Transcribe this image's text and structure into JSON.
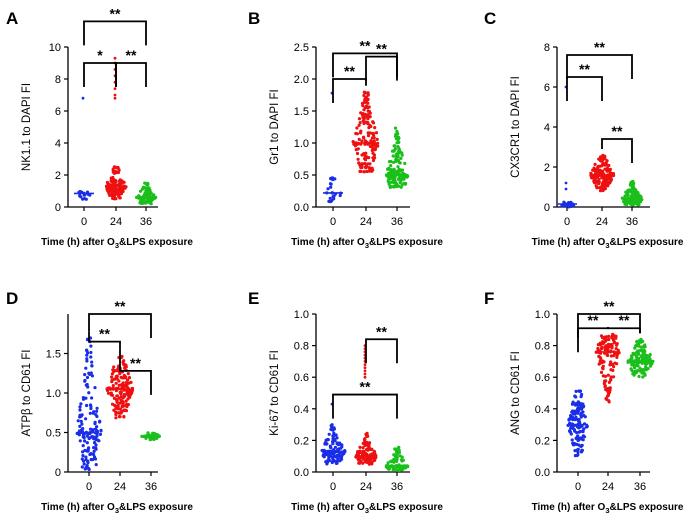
{
  "colors": {
    "t0": "#1a2ee8",
    "t24": "#ee1111",
    "t36": "#1bbf1b",
    "axis": "#000000"
  },
  "chart_data": [
    {
      "panel": "A",
      "type": "scatter",
      "ylabel": "NK1.1 to DAPI FI",
      "xlabel_parts": [
        "Time (h) after O",
        "3",
        "&LPS exposure"
      ],
      "categories": [
        "0",
        "24",
        "36"
      ],
      "ylim": [
        0,
        10
      ],
      "yticks": [
        "0",
        "2",
        "4",
        "6",
        "8",
        "10"
      ],
      "series": [
        {
          "name": "0",
          "color": "#1a2ee8",
          "count": 18,
          "median": 0.85,
          "min": 0.45,
          "max": 1.2,
          "spread": 0.28,
          "outliers": [
            6.8
          ]
        },
        {
          "name": "24",
          "color": "#ee1111",
          "count": 130,
          "median": 1.3,
          "min": 0.5,
          "max": 2.6,
          "spread": 0.36,
          "outliers": [
            9.3,
            9.0,
            8.6,
            8.2,
            7.8,
            7.4,
            7.0,
            6.8
          ]
        },
        {
          "name": "36",
          "color": "#1bbf1b",
          "count": 110,
          "median": 0.6,
          "min": 0.2,
          "max": 1.5,
          "spread": 0.34,
          "outliers": []
        }
      ],
      "sig": [
        {
          "from": 0,
          "to": 1,
          "label": "*",
          "level": 9.0
        },
        {
          "from": 1,
          "to": 2,
          "label": "**",
          "level": 9.0
        },
        {
          "from": 0,
          "to": 2,
          "label": "**",
          "level": 11.6
        }
      ]
    },
    {
      "panel": "B",
      "type": "scatter",
      "ylabel": "Gr1 to DAPI FI",
      "xlabel_parts": [
        "Time (h) after O",
        "3",
        "&LPS exposure"
      ],
      "categories": [
        "0",
        "24",
        "36"
      ],
      "ylim": [
        0,
        2.5
      ],
      "yticks": [
        "0.0",
        "0.5",
        "1.0",
        "1.5",
        "2.0",
        "2.5"
      ],
      "series": [
        {
          "name": "0",
          "color": "#1a2ee8",
          "count": 22,
          "median": 0.22,
          "min": 0.05,
          "max": 0.5,
          "spread": 0.3,
          "outliers": [
            1.78
          ]
        },
        {
          "name": "24",
          "color": "#ee1111",
          "count": 160,
          "median": 1.0,
          "min": 0.55,
          "max": 1.8,
          "spread": 0.46,
          "outliers": []
        },
        {
          "name": "36",
          "color": "#1bbf1b",
          "count": 160,
          "median": 0.5,
          "min": 0.3,
          "max": 1.25,
          "spread": 0.38,
          "outliers": []
        }
      ],
      "sig": [
        {
          "from": 0,
          "to": 1,
          "label": "**",
          "level": 2.0
        },
        {
          "from": 1,
          "to": 2,
          "label": "**",
          "level": 2.35
        },
        {
          "from": 0,
          "to": 2,
          "label": "**",
          "level": 2.4
        }
      ]
    },
    {
      "panel": "C",
      "type": "scatter",
      "ylabel": "CX3CR1 to DAPI FI",
      "xlabel_parts": [
        "Time (h) after O",
        "3",
        "&LPS exposure"
      ],
      "categories": [
        "0",
        "24",
        "36"
      ],
      "ylim": [
        0,
        8
      ],
      "yticks": [
        "0",
        "2",
        "4",
        "6",
        "8"
      ],
      "series": [
        {
          "name": "0",
          "color": "#1a2ee8",
          "count": 18,
          "median": 0.15,
          "min": 0.0,
          "max": 0.4,
          "spread": 0.35,
          "outliers": [
            6.0,
            1.2,
            0.9
          ]
        },
        {
          "name": "24",
          "color": "#ee1111",
          "count": 150,
          "median": 1.6,
          "min": 0.8,
          "max": 2.6,
          "spread": 0.42,
          "outliers": []
        },
        {
          "name": "36",
          "color": "#1bbf1b",
          "count": 140,
          "median": 0.4,
          "min": 0.1,
          "max": 1.3,
          "spread": 0.36,
          "outliers": []
        }
      ],
      "sig": [
        {
          "from": 0,
          "to": 1,
          "label": "**",
          "level": 6.5
        },
        {
          "from": 1,
          "to": 2,
          "label": "**",
          "level": 3.4
        },
        {
          "from": 0,
          "to": 2,
          "label": "**",
          "level": 7.6
        }
      ]
    },
    {
      "panel": "D",
      "type": "scatter",
      "ylabel_parts": [
        "ATP",
        "β",
        " to CD61 FI"
      ],
      "xlabel_parts": [
        "Time (h) after O",
        "3",
        "&LPS exposure"
      ],
      "categories": [
        "0",
        "24",
        "36"
      ],
      "ylim": [
        0,
        2.0
      ],
      "yticks": [
        "0",
        "0.5",
        "1.0",
        "1.5"
      ],
      "yticks_at": [
        0,
        0.5,
        1.0,
        1.5
      ],
      "series": [
        {
          "name": "0",
          "color": "#1a2ee8",
          "count": 150,
          "median": 0.5,
          "min": 0.02,
          "max": 1.7,
          "spread": 0.44,
          "outliers": []
        },
        {
          "name": "24",
          "color": "#ee1111",
          "count": 160,
          "median": 1.05,
          "min": 0.68,
          "max": 1.48,
          "spread": 0.46,
          "outliers": []
        },
        {
          "name": "36",
          "color": "#1bbf1b",
          "count": 40,
          "median": 0.45,
          "min": 0.4,
          "max": 0.5,
          "spread": 0.32,
          "outliers": []
        }
      ],
      "sig": [
        {
          "from": 0,
          "to": 1,
          "label": "**",
          "level": 1.65
        },
        {
          "from": 1,
          "to": 2,
          "label": "**",
          "level": 1.28
        },
        {
          "from": 0,
          "to": 2,
          "label": "**",
          "level": 2.0
        }
      ]
    },
    {
      "panel": "E",
      "type": "scatter",
      "ylabel": "Ki-67 to CD61 FI",
      "xlabel_parts": [
        "Time (h) after O",
        "3",
        "&LPS exposure"
      ],
      "categories": [
        "0",
        "24",
        "36"
      ],
      "ylim": [
        0,
        1.0
      ],
      "yticks": [
        "0.0",
        "0.2",
        "0.4",
        "0.6",
        "0.8",
        "1.0"
      ],
      "series": [
        {
          "name": "0",
          "color": "#1a2ee8",
          "count": 120,
          "median": 0.13,
          "min": 0.05,
          "max": 0.3,
          "spread": 0.42,
          "outliers": [
            0.43
          ]
        },
        {
          "name": "24",
          "color": "#ee1111",
          "count": 110,
          "median": 0.1,
          "min": 0.05,
          "max": 0.25,
          "spread": 0.38,
          "outliers": [
            0.8,
            0.78,
            0.76,
            0.74,
            0.72,
            0.7,
            0.68,
            0.66,
            0.64,
            0.62,
            0.6
          ]
        },
        {
          "name": "36",
          "color": "#1bbf1b",
          "count": 80,
          "median": 0.04,
          "min": 0.01,
          "max": 0.16,
          "spread": 0.4,
          "outliers": []
        }
      ],
      "sig": [
        {
          "from": 1,
          "to": 2,
          "label": "**",
          "level": 0.84
        },
        {
          "from": 0,
          "to": 2,
          "label": "**",
          "level": 0.49
        }
      ]
    },
    {
      "panel": "F",
      "type": "scatter",
      "ylabel": "ANG to CD61 FI",
      "xlabel_parts": [
        "Time (h) after O",
        "3",
        "&LPS exposure"
      ],
      "categories": [
        "0",
        "24",
        "36"
      ],
      "ylim": [
        0,
        1.0
      ],
      "yticks": [
        "0.0",
        "0.2",
        "0.4",
        "0.6",
        "0.8",
        "1.0"
      ],
      "series": [
        {
          "name": "0",
          "color": "#1a2ee8",
          "count": 130,
          "median": 0.3,
          "min": 0.1,
          "max": 0.52,
          "spread": 0.36,
          "outliers": []
        },
        {
          "name": "24",
          "color": "#ee1111",
          "count": 130,
          "median": 0.76,
          "min": 0.44,
          "max": 0.88,
          "spread": 0.42,
          "outliers": []
        },
        {
          "name": "36",
          "color": "#1bbf1b",
          "count": 140,
          "median": 0.7,
          "min": 0.6,
          "max": 0.84,
          "spread": 0.48,
          "outliers": []
        }
      ],
      "sig": [
        {
          "from": 0,
          "to": 1,
          "label": "**",
          "level": 0.91
        },
        {
          "from": 1,
          "to": 2,
          "label": "**",
          "level": 0.91
        },
        {
          "from": 0,
          "to": 2,
          "label": "**",
          "level": 1.0
        }
      ]
    }
  ]
}
